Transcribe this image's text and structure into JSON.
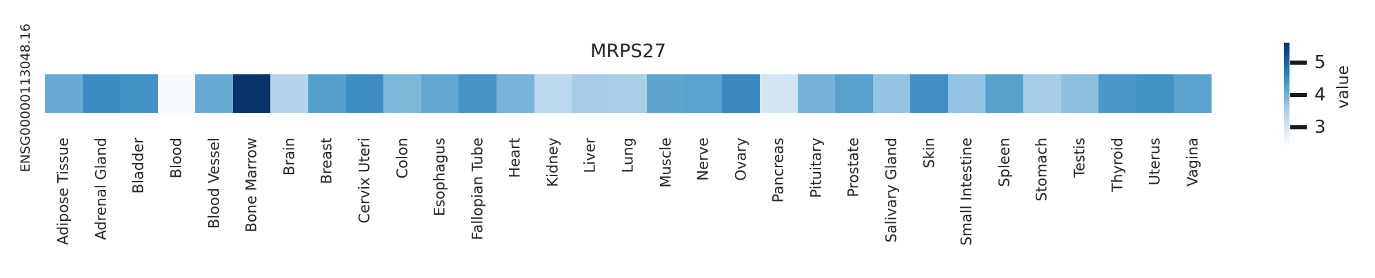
{
  "figure": {
    "title": "MRPS27",
    "row_label": "ENSG00000113048.16"
  },
  "chart_data": {
    "type": "heatmap",
    "title": "MRPS27",
    "rows": [
      "ENSG00000113048.16"
    ],
    "categories": [
      "Adipose Tissue",
      "Adrenal Gland",
      "Bladder",
      "Blood",
      "Blood Vessel",
      "Bone Marrow",
      "Brain",
      "Breast",
      "Cervix Uteri",
      "Colon",
      "Esophagus",
      "Fallopian Tube",
      "Heart",
      "Kidney",
      "Liver",
      "Lung",
      "Muscle",
      "Nerve",
      "Ovary",
      "Pancreas",
      "Pituitary",
      "Prostate",
      "Salivary Gland",
      "Skin",
      "Small Intestine",
      "Spleen",
      "Stomach",
      "Testis",
      "Thyroid",
      "Uterus",
      "Vagina"
    ],
    "series": [
      {
        "name": "ENSG00000113048.16",
        "values": [
          4.2,
          4.6,
          4.5,
          2.5,
          4.2,
          5.6,
          3.4,
          4.3,
          4.55,
          3.95,
          4.2,
          4.5,
          4.0,
          3.4,
          3.6,
          3.6,
          4.2,
          4.25,
          4.6,
          3.0,
          4.0,
          4.25,
          3.8,
          4.5,
          3.8,
          4.25,
          3.6,
          3.85,
          4.45,
          4.5,
          4.25
        ]
      }
    ],
    "cell_colors": [
      "#68aad3",
      "#3c8cc3",
      "#4292c6",
      "#f7fbff",
      "#68abd4",
      "#09336b",
      "#b5d4ea",
      "#549fcc",
      "#3e8dc3",
      "#7db9db",
      "#61a7d2",
      "#4593c7",
      "#78b4d8",
      "#bcd8ed",
      "#a7cde5",
      "#a8cfe5",
      "#5da4d0",
      "#59a1ce",
      "#3c89c1",
      "#d3e4f3",
      "#74b2d9",
      "#58a0cd",
      "#92c3e0",
      "#418fc4",
      "#92c4e1",
      "#58a0cc",
      "#a5cde6",
      "#8cc0de",
      "#4997c9",
      "#4292c6",
      "#59a1ce"
    ],
    "colormap": "Blues",
    "grid": false,
    "colorbar": {
      "label": "value",
      "ticks": [
        5,
        4,
        3
      ],
      "vmin": 2.46,
      "vmax": 5.63,
      "gradient_top_to_bottom": [
        "#08306b",
        "#08519c",
        "#2171b5",
        "#4292c6",
        "#6baed6",
        "#9ecae1",
        "#c6dbef",
        "#deebf7",
        "#f7fbff"
      ]
    }
  }
}
